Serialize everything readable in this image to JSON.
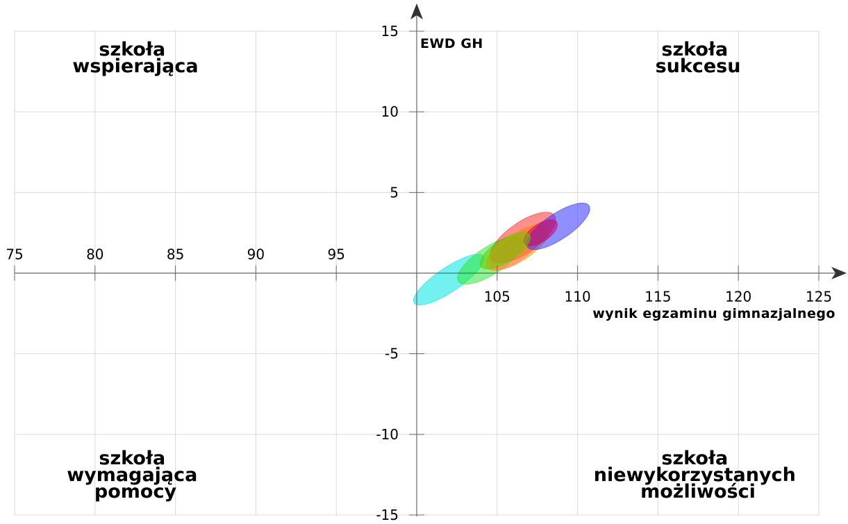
{
  "chart_data": {
    "type": "scatter",
    "subtype": "confidence-ellipses",
    "xlabel": "wynik egzaminu gimnazjalnego",
    "ylabel": "EWD GH",
    "xlim": [
      75,
      125
    ],
    "ylim": [
      -15,
      15
    ],
    "x_ticks_left": [
      "75",
      "80",
      "85",
      "90",
      "95"
    ],
    "x_ticks_right": [
      "105",
      "110",
      "115",
      "120",
      "125"
    ],
    "x_tick_values_left": [
      75,
      80,
      85,
      90,
      95
    ],
    "x_tick_values_right": [
      105,
      110,
      115,
      120,
      125
    ],
    "y_ticks": [
      "15",
      "10",
      "5",
      "-5",
      "-10",
      "-15"
    ],
    "y_tick_values": [
      15,
      10,
      5,
      -5,
      -10,
      -15
    ],
    "grid": true,
    "axis_cross": {
      "x": 100,
      "y": 0
    },
    "quadrants": {
      "top_left": [
        "szkoła",
        "wspierająca"
      ],
      "top_right": [
        "szkoła",
        "sukcesu"
      ],
      "bottom_left": [
        "szkoła",
        "wymagająca",
        "pomocy"
      ],
      "bottom_right": [
        "szkoła",
        "niewykorzystanych",
        "możliwości"
      ]
    },
    "ellipses": [
      {
        "color": "#00e5e5",
        "cx": 102.0,
        "cy": -0.4,
        "rx": 2.6,
        "ry": 0.75,
        "angle": 34
      },
      {
        "color": "#33e633",
        "cx": 104.6,
        "cy": 0.8,
        "rx": 2.4,
        "ry": 0.85,
        "angle": 33
      },
      {
        "color": "#ff66ff",
        "cx": 106.3,
        "cy": 1.6,
        "rx": 2.1,
        "ry": 0.75,
        "angle": 37
      },
      {
        "color": "#ff3333",
        "cx": 106.6,
        "cy": 2.2,
        "rx": 2.4,
        "ry": 0.95,
        "angle": 35
      },
      {
        "color": "#ff9900",
        "cx": 106.3,
        "cy": 1.6,
        "rx": 2.3,
        "ry": 0.85,
        "angle": 33
      },
      {
        "color": "#3333ff",
        "cx": 108.8,
        "cy": 2.9,
        "rx": 2.3,
        "ry": 0.8,
        "angle": 34
      },
      {
        "color": "#cc0066",
        "cx": 107.7,
        "cy": 2.5,
        "rx": 1.2,
        "ry": 0.55,
        "angle": 34
      },
      {
        "color": "#66cc00",
        "cx": 105.5,
        "cy": 1.4,
        "rx": 1.8,
        "ry": 0.7,
        "angle": 33
      }
    ]
  }
}
